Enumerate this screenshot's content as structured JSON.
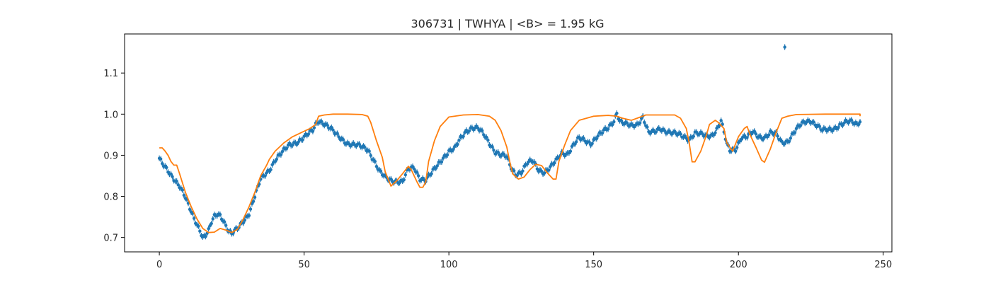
{
  "chart_data": {
    "type": "scatter",
    "title": "306731 | TWHYA | <B> = 1.95 kG",
    "xlabel": "",
    "ylabel": "",
    "xlim": [
      -12,
      253
    ],
    "ylim": [
      0.665,
      1.195
    ],
    "xticks": [
      0,
      50,
      100,
      150,
      200,
      250
    ],
    "yticks": [
      0.7,
      0.8,
      0.9,
      1.0,
      1.1
    ],
    "xtick_labels": [
      "0",
      "50",
      "100",
      "150",
      "200",
      "250"
    ],
    "ytick_labels": [
      "0.7",
      "0.8",
      "0.9",
      "1.0",
      "1.1"
    ],
    "grid": false,
    "colors": {
      "observed": "#1f77b4",
      "model": "#ff7f0e"
    },
    "series": [
      {
        "kind": "errorbar",
        "error": 0.007,
        "anchors": [
          [
            0,
            0.89
          ],
          [
            1,
            0.878
          ],
          [
            3,
            0.862
          ],
          [
            5,
            0.845
          ],
          [
            7,
            0.825
          ],
          [
            9,
            0.795
          ],
          [
            11,
            0.762
          ],
          [
            13,
            0.733
          ],
          [
            14,
            0.72
          ],
          [
            15,
            0.7
          ],
          [
            16,
            0.705
          ],
          [
            17,
            0.715
          ],
          [
            18,
            0.735
          ],
          [
            19,
            0.75
          ],
          [
            20,
            0.757
          ],
          [
            21,
            0.755
          ],
          [
            22,
            0.745
          ],
          [
            23,
            0.73
          ],
          [
            24,
            0.715
          ],
          [
            25,
            0.708
          ],
          [
            27,
            0.72
          ],
          [
            29,
            0.74
          ],
          [
            31,
            0.76
          ],
          [
            33,
            0.8
          ],
          [
            35,
            0.84
          ],
          [
            38,
            0.865
          ],
          [
            40,
            0.89
          ],
          [
            43,
            0.91
          ],
          [
            45,
            0.925
          ],
          [
            48,
            0.935
          ],
          [
            51,
            0.948
          ],
          [
            53,
            0.96
          ],
          [
            54,
            0.975
          ],
          [
            55,
            0.985
          ],
          [
            57,
            0.978
          ],
          [
            59,
            0.965
          ],
          [
            61,
            0.95
          ],
          [
            63,
            0.94
          ],
          [
            65,
            0.93
          ],
          [
            67,
            0.925
          ],
          [
            70,
            0.92
          ],
          [
            72,
            0.915
          ],
          [
            74,
            0.89
          ],
          [
            76,
            0.86
          ],
          [
            78,
            0.845
          ],
          [
            80,
            0.84
          ],
          [
            82,
            0.838
          ],
          [
            84,
            0.835
          ],
          [
            86,
            0.865
          ],
          [
            88,
            0.87
          ],
          [
            90,
            0.845
          ],
          [
            92,
            0.84
          ],
          [
            94,
            0.855
          ],
          [
            96,
            0.875
          ],
          [
            98,
            0.895
          ],
          [
            100,
            0.91
          ],
          [
            102,
            0.915
          ],
          [
            104,
            0.94
          ],
          [
            106,
            0.96
          ],
          [
            108,
            0.968
          ],
          [
            110,
            0.965
          ],
          [
            112,
            0.95
          ],
          [
            114,
            0.93
          ],
          [
            116,
            0.91
          ],
          [
            118,
            0.9
          ],
          [
            120,
            0.895
          ],
          [
            121,
            0.875
          ],
          [
            123,
            0.855
          ],
          [
            125,
            0.86
          ],
          [
            127,
            0.88
          ],
          [
            129,
            0.885
          ],
          [
            131,
            0.865
          ],
          [
            133,
            0.86
          ],
          [
            135,
            0.87
          ],
          [
            137,
            0.885
          ],
          [
            139,
            0.905
          ],
          [
            141,
            0.905
          ],
          [
            143,
            0.925
          ],
          [
            145,
            0.94
          ],
          [
            147,
            0.935
          ],
          [
            149,
            0.93
          ],
          [
            151,
            0.945
          ],
          [
            153,
            0.955
          ],
          [
            155,
            0.965
          ],
          [
            157,
            0.985
          ],
          [
            158,
            1.005
          ],
          [
            159,
            0.985
          ],
          [
            161,
            0.975
          ],
          [
            163,
            0.97
          ],
          [
            165,
            0.975
          ],
          [
            167,
            0.995
          ],
          [
            168,
            0.975
          ],
          [
            169,
            0.955
          ],
          [
            171,
            0.955
          ],
          [
            173,
            0.965
          ],
          [
            175,
            0.96
          ],
          [
            177,
            0.955
          ],
          [
            179,
            0.95
          ],
          [
            181,
            0.945
          ],
          [
            183,
            0.94
          ],
          [
            185,
            0.955
          ],
          [
            187,
            0.95
          ],
          [
            189,
            0.945
          ],
          [
            191,
            0.95
          ],
          [
            193,
            0.97
          ],
          [
            194,
            0.985
          ],
          [
            196,
            0.925
          ],
          [
            197,
            0.91
          ],
          [
            199,
            0.915
          ],
          [
            201,
            0.945
          ],
          [
            203,
            0.945
          ],
          [
            205,
            0.955
          ],
          [
            207,
            0.945
          ],
          [
            209,
            0.945
          ],
          [
            211,
            0.955
          ],
          [
            213,
            0.95
          ],
          [
            215,
            0.93
          ],
          [
            217,
            0.935
          ],
          [
            219,
            0.955
          ],
          [
            221,
            0.97
          ],
          [
            223,
            0.98
          ],
          [
            225,
            0.985
          ],
          [
            227,
            0.975
          ],
          [
            229,
            0.96
          ],
          [
            231,
            0.96
          ],
          [
            233,
            0.965
          ],
          [
            235,
            0.975
          ],
          [
            237,
            0.98
          ],
          [
            239,
            0.98
          ],
          [
            241,
            0.975
          ],
          [
            242,
            0.985
          ]
        ],
        "outliers": [
          [
            216,
            1.163
          ]
        ]
      },
      {
        "kind": "line",
        "points": [
          [
            0,
            0.918
          ],
          [
            1,
            0.918
          ],
          [
            2,
            0.91
          ],
          [
            3,
            0.9
          ],
          [
            4,
            0.885
          ],
          [
            5,
            0.876
          ],
          [
            6,
            0.876
          ],
          [
            7,
            0.855
          ],
          [
            9,
            0.81
          ],
          [
            11,
            0.775
          ],
          [
            13,
            0.745
          ],
          [
            15,
            0.722
          ],
          [
            17,
            0.712
          ],
          [
            19,
            0.713
          ],
          [
            21,
            0.722
          ],
          [
            23,
            0.718
          ],
          [
            25,
            0.712
          ],
          [
            27,
            0.72
          ],
          [
            29,
            0.745
          ],
          [
            31,
            0.775
          ],
          [
            33,
            0.81
          ],
          [
            35,
            0.85
          ],
          [
            37,
            0.875
          ],
          [
            38,
            0.89
          ],
          [
            40,
            0.91
          ],
          [
            43,
            0.93
          ],
          [
            46,
            0.945
          ],
          [
            49,
            0.955
          ],
          [
            52,
            0.965
          ],
          [
            54,
            0.975
          ],
          [
            55,
            0.995
          ],
          [
            57,
            0.998
          ],
          [
            60,
            1.0
          ],
          [
            65,
            1.0
          ],
          [
            70,
            0.999
          ],
          [
            72,
            0.995
          ],
          [
            73,
            0.98
          ],
          [
            75,
            0.935
          ],
          [
            77,
            0.895
          ],
          [
            78,
            0.86
          ],
          [
            80,
            0.825
          ],
          [
            82,
            0.838
          ],
          [
            84,
            0.855
          ],
          [
            86,
            0.873
          ],
          [
            87,
            0.865
          ],
          [
            89,
            0.835
          ],
          [
            90,
            0.822
          ],
          [
            91,
            0.822
          ],
          [
            92,
            0.835
          ],
          [
            93,
            0.885
          ],
          [
            95,
            0.935
          ],
          [
            97,
            0.97
          ],
          [
            100,
            0.993
          ],
          [
            105,
            0.998
          ],
          [
            110,
            0.999
          ],
          [
            114,
            0.995
          ],
          [
            116,
            0.985
          ],
          [
            118,
            0.96
          ],
          [
            120,
            0.92
          ],
          [
            121,
            0.885
          ],
          [
            122,
            0.855
          ],
          [
            124,
            0.842
          ],
          [
            126,
            0.847
          ],
          [
            128,
            0.865
          ],
          [
            130,
            0.878
          ],
          [
            132,
            0.875
          ],
          [
            134,
            0.857
          ],
          [
            136,
            0.842
          ],
          [
            137,
            0.842
          ],
          [
            138,
            0.885
          ],
          [
            140,
            0.925
          ],
          [
            142,
            0.96
          ],
          [
            145,
            0.985
          ],
          [
            150,
            0.995
          ],
          [
            155,
            0.997
          ],
          [
            158,
            0.995
          ],
          [
            160,
            0.99
          ],
          [
            163,
            0.985
          ],
          [
            165,
            0.99
          ],
          [
            168,
            0.998
          ],
          [
            172,
            0.998
          ],
          [
            178,
            0.998
          ],
          [
            180,
            0.99
          ],
          [
            182,
            0.965
          ],
          [
            183,
            0.93
          ],
          [
            184,
            0.884
          ],
          [
            185,
            0.884
          ],
          [
            187,
            0.91
          ],
          [
            189,
            0.95
          ],
          [
            190,
            0.975
          ],
          [
            192,
            0.985
          ],
          [
            193,
            0.98
          ],
          [
            195,
            0.965
          ],
          [
            196,
            0.93
          ],
          [
            198,
            0.91
          ],
          [
            200,
            0.945
          ],
          [
            202,
            0.965
          ],
          [
            203,
            0.97
          ],
          [
            204,
            0.95
          ],
          [
            206,
            0.92
          ],
          [
            208,
            0.888
          ],
          [
            209,
            0.883
          ],
          [
            211,
            0.915
          ],
          [
            213,
            0.955
          ],
          [
            215,
            0.99
          ],
          [
            217,
            0.995
          ],
          [
            220,
            0.999
          ],
          [
            230,
            1.0
          ],
          [
            242,
            1.0
          ],
          [
            242,
            0.995
          ]
        ]
      }
    ]
  }
}
